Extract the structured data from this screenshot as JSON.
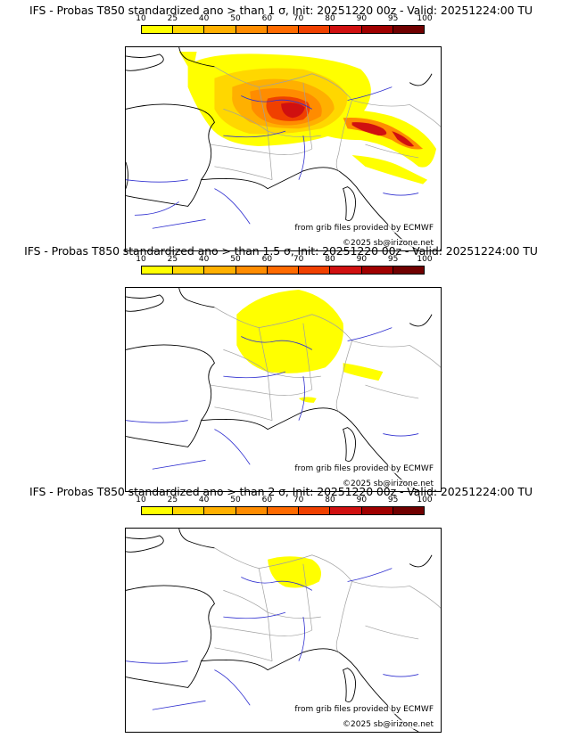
{
  "colors": {
    "scale": [
      "#ffff00",
      "#ffd700",
      "#ffb000",
      "#ff8c00",
      "#ff6a00",
      "#f04000",
      "#d01010",
      "#a00000",
      "#700000"
    ],
    "river": "#3030d0",
    "border": "#a0a0a0",
    "coast": "#000000"
  },
  "colorbar": {
    "ticks": [
      "10",
      "25",
      "40",
      "50",
      "60",
      "70",
      "80",
      "90",
      "95",
      "100"
    ]
  },
  "panels": [
    {
      "title": "IFS - Probas T850  standardized ano > than 1 σ, Init: 20251220 00z - Valid: 20251224:00 TU",
      "source": "from grib files provided by ECMWF",
      "copyright": "©2025 sb@irizone.net",
      "threshold_sigma": 1
    },
    {
      "title": "IFS - Probas T850  standardized ano > than 1.5 σ, Init: 20251220 00z - Valid: 20251224:00 TU",
      "source": "from grib files provided by ECMWF",
      "copyright": "©2025 sb@irizone.net",
      "threshold_sigma": 1.5
    },
    {
      "title": "IFS - Probas T850  standardized ano > than 2 σ, Init: 20251220 00z - Valid: 20251224:00 TU",
      "source": "from grib files provided by ECMWF",
      "copyright": "©2025 sb@irizone.net",
      "threshold_sigma": 2
    }
  ]
}
